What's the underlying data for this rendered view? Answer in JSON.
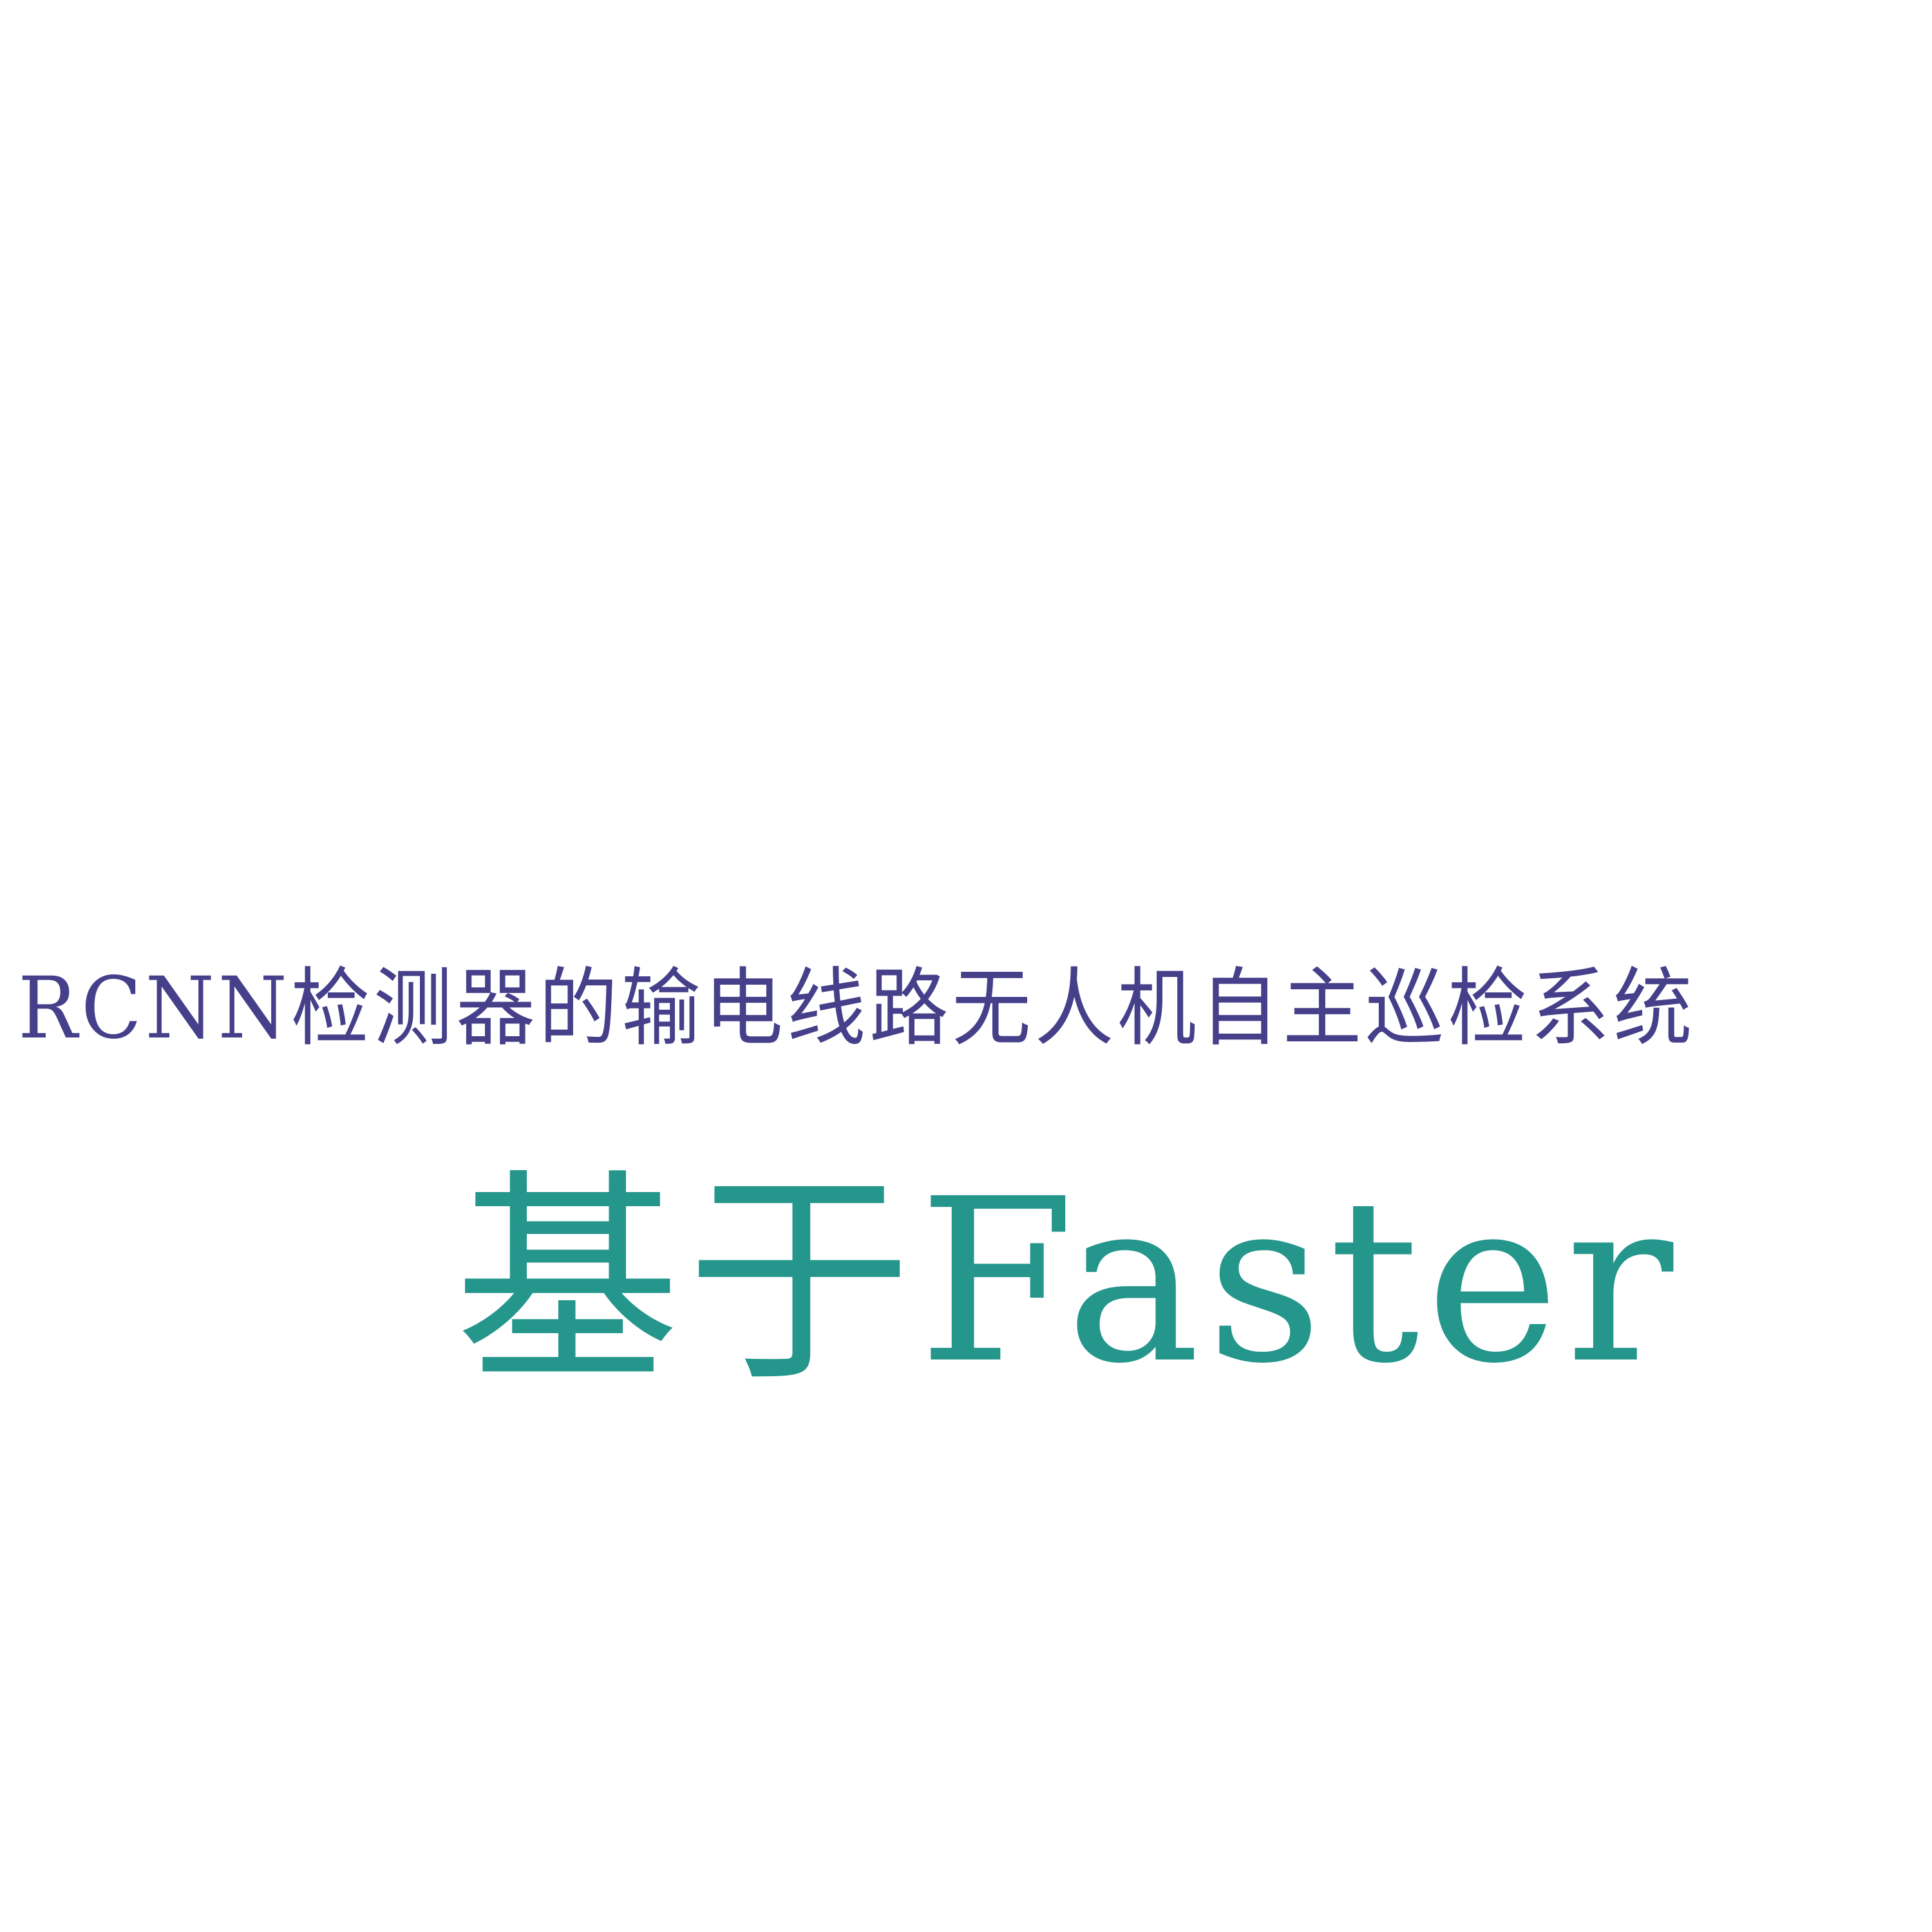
{
  "poster": {
    "subtitle": "RCNN检测器的输电线路无人机自主巡检系统",
    "main_title": "基于Faster"
  },
  "colors": {
    "background": "#ffffff",
    "subtitle_text": "#463f8a",
    "main_title_text": "#24968c"
  }
}
